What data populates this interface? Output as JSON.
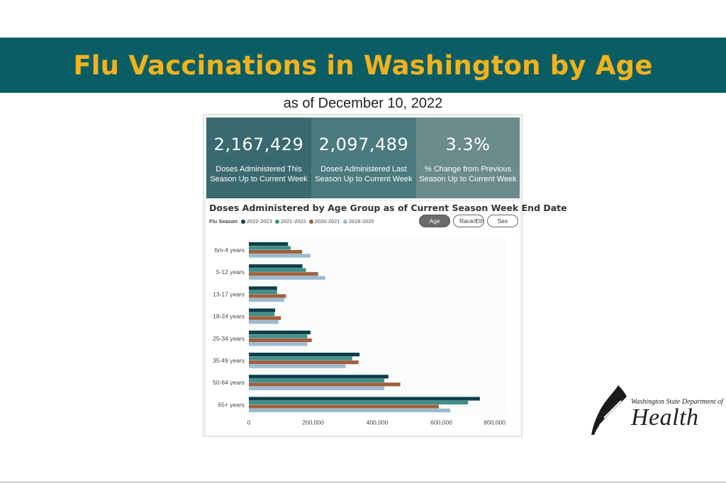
{
  "header": {
    "title": "Flu Vaccinations in Washington by Age",
    "subtitle": "as of December 10, 2022"
  },
  "kpis": [
    {
      "value": "2,167,429",
      "label_line1": "Doses Administered This",
      "label_line2": "Season Up to Current Week"
    },
    {
      "value": "2,097,489",
      "label_line1": "Doses Administered Last",
      "label_line2": "Season Up to Current Week"
    },
    {
      "value": "3.3%",
      "label_line1": "% Change from Previous",
      "label_line2": "Season Up to Current Week"
    }
  ],
  "toggles": {
    "age": "Age",
    "race": "Race/Eth",
    "sex": "Sex"
  },
  "colors": {
    "s2223": "#0f3f47",
    "s2122": "#3f8f8a",
    "s2021": "#a2603e",
    "s1920": "#9bbad0"
  },
  "logo": {
    "dept": "Washington State Department of",
    "name": "Health"
  },
  "chart_data": {
    "type": "bar",
    "orientation": "horizontal",
    "title": "Doses Administered by Age Group as of Current Season Week End Date",
    "legend_title": "Flu Season",
    "legend_placement": "top-left",
    "categories": [
      "6m-4 years",
      "5-12 years",
      "13-17 years",
      "18-24 years",
      "25-34 years",
      "35-49 years",
      "50-64 years",
      "65+ years"
    ],
    "series": [
      {
        "name": "2022-2023",
        "values": [
          122000,
          167000,
          88000,
          82000,
          192000,
          345000,
          435000,
          720000
        ]
      },
      {
        "name": "2021-2022",
        "values": [
          130000,
          178000,
          88000,
          80000,
          182000,
          322000,
          422000,
          683000
        ]
      },
      {
        "name": "2020-2021",
        "values": [
          166000,
          216000,
          116000,
          100000,
          196000,
          342000,
          472000,
          592000
        ]
      },
      {
        "name": "2019-2020",
        "values": [
          192000,
          238000,
          110000,
          92000,
          182000,
          302000,
          422000,
          628000
        ]
      }
    ],
    "xlim": [
      0,
      800000
    ],
    "xticks": [
      "0",
      "200,000",
      "400,000",
      "600,000",
      "800,000"
    ],
    "xtick_values": [
      0,
      200000,
      400000,
      600000,
      800000
    ]
  }
}
